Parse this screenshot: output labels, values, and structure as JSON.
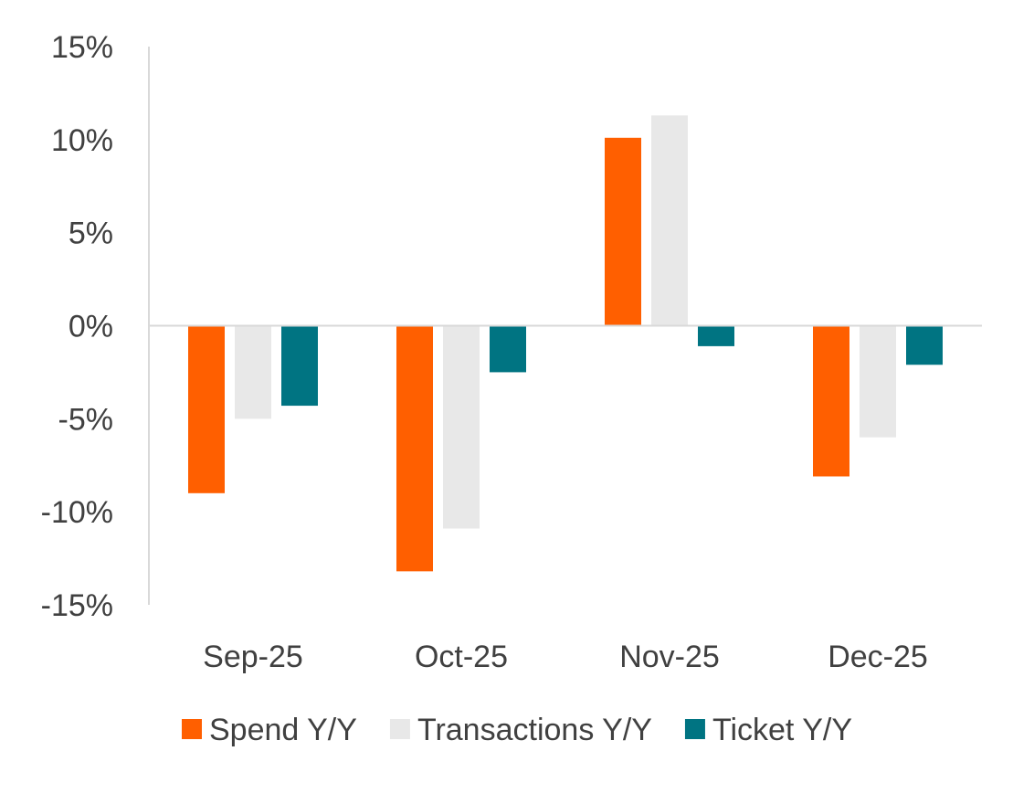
{
  "chart_data": {
    "type": "bar",
    "title": "",
    "xlabel": "",
    "ylabel": "",
    "categories": [
      "Sep-25",
      "Oct-25",
      "Nov-25",
      "Dec-25"
    ],
    "series": [
      {
        "name": "Spend Y/Y",
        "color": "#FF5F00",
        "values": [
          -9.0,
          -13.2,
          10.1,
          -8.1
        ]
      },
      {
        "name": "Transactions Y/Y",
        "color": "#E8E8E8",
        "values": [
          -5.0,
          -10.9,
          11.3,
          -6.0
        ]
      },
      {
        "name": "Ticket Y/Y",
        "color": "#007482",
        "values": [
          -4.3,
          -2.5,
          -1.1,
          -2.1
        ]
      }
    ],
    "ylim": [
      -15,
      15
    ],
    "yticks": [
      15,
      10,
      5,
      0,
      -5,
      -10,
      -15
    ],
    "ytick_labels": [
      "15%",
      "10%",
      "5%",
      "0%",
      "-5%",
      "-10%",
      "-15%"
    ],
    "grid": false,
    "legend_position": "bottom",
    "axis_color": "#D9D9D9"
  }
}
